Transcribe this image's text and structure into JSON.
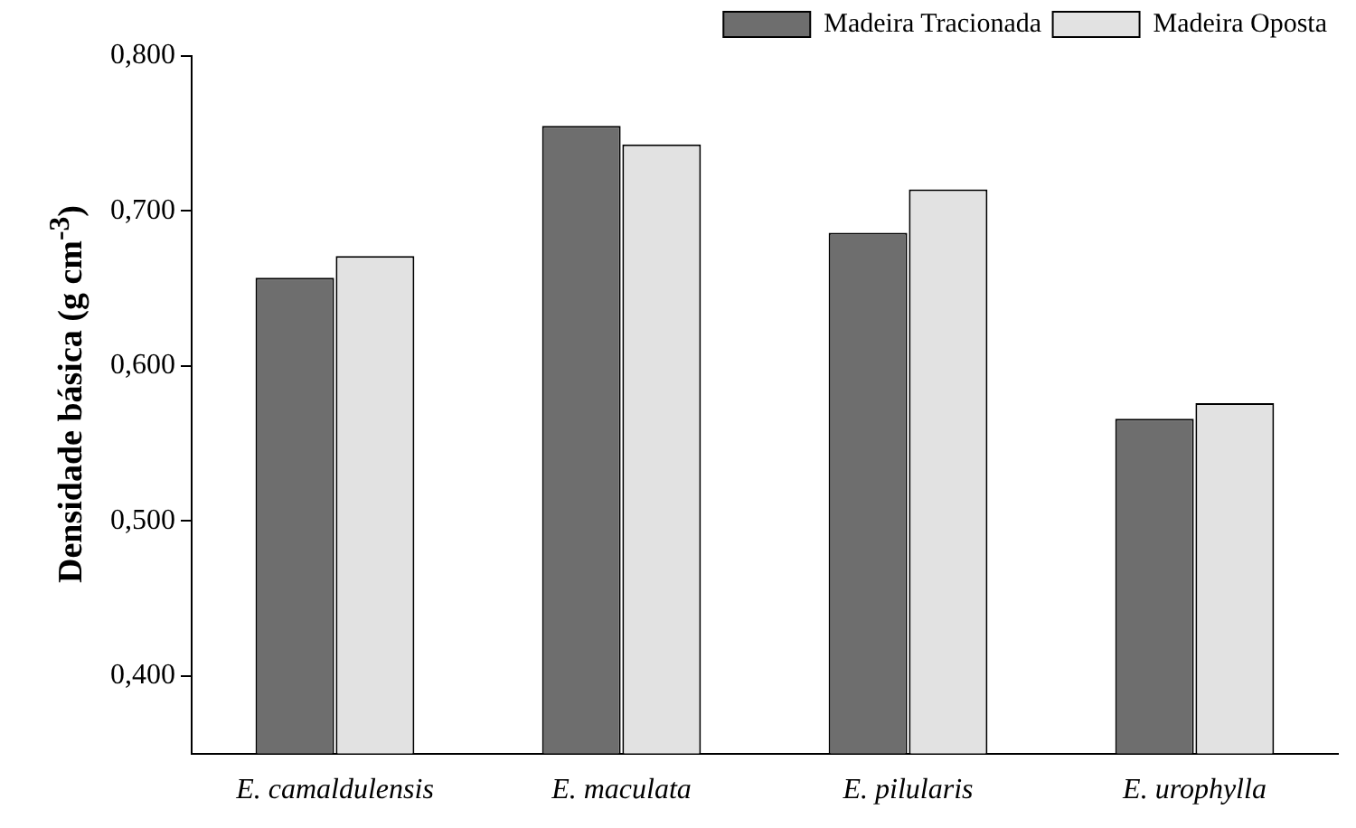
{
  "chart_data": {
    "type": "bar",
    "ylabel": "Densidade básica (g cm$^{-3}$)",
    "categories": [
      "E. camaldulensis",
      "E. maculata",
      "E. pilularis",
      "E. urophylla"
    ],
    "series": [
      {
        "name": "Madeira Tracionada",
        "color": "#6e6e6e",
        "values": [
          0.657,
          0.755,
          0.686,
          0.566
        ]
      },
      {
        "name": "Madeira Oposta",
        "color": "#e2e2e2",
        "values": [
          0.671,
          0.743,
          0.714,
          0.576
        ]
      }
    ],
    "ylim": [
      0.35,
      0.8
    ],
    "yticks": [
      {
        "value": 0.4,
        "label": "0,400"
      },
      {
        "value": 0.5,
        "label": "0,500"
      },
      {
        "value": 0.6,
        "label": "0,600"
      },
      {
        "value": 0.7,
        "label": "0,700"
      },
      {
        "value": 0.8,
        "label": "0,800"
      }
    ],
    "grid": false,
    "legend": "top right"
  }
}
